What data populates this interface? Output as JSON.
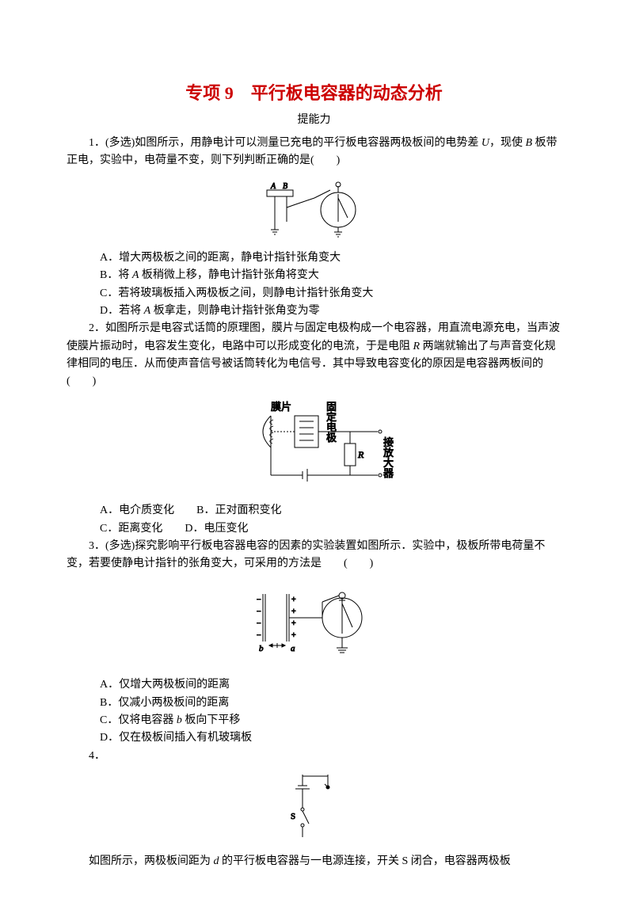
{
  "title": "专项 9　平行板电容器的动态分析",
  "subtitle": "提能力",
  "q1": {
    "stem": "1．(多选)如图所示，用静电计可以测量已充电的平行板电容器两极板间的电势差 <i>U</i>，现使 <i>B</i> 板带正电，实验中，电荷量不变，则下列判断正确的是(　　)",
    "optA": "A．增大两极板之间的距离，静电计指针张角变大",
    "optB": "B．将 <i>A</i> 板稍微上移，静电计指针张角将变大",
    "optC": "C．若将玻璃板插入两极板之间，则静电计指针张角变大",
    "optD": "D．若将 <i>A</i> 板拿走，则静电计指针张角变为零"
  },
  "q2": {
    "stem": "2．如图所示是电容式话筒的原理图，膜片与固定电极构成一个电容器，用直流电源充电，当声波使膜片振动时，电容发生变化，电路中可以形成变化的电流，于是电阻 <i>R</i> 两端就输出了与声音变化规律相同的电压．从而使声音信号被话筒转化为电信号．其中导致电容变化的原因是电容器两板间的(　　)",
    "labels": {
      "membrane": "膜片",
      "electrode": "固定电极",
      "amplifier": "接放大器",
      "R": "R"
    },
    "optA": "A．电介质变化",
    "optB": "B．正对面积变化",
    "optC": "C．距离变化",
    "optD": "D．电压变化"
  },
  "q3": {
    "stem": "3．(多选)探究影响平行板电容器电容的因素的实验装置如图所示．实验中，极板所带电荷量不变，若要使静电计指针的张角变大，可采用的方法是　　(　　)",
    "labels": {
      "a": "a",
      "b": "b"
    },
    "optA": "A．仅增大两极板间的距离",
    "optB": "B．仅减小两极板间的距离",
    "optC": "C．仅将电容器 <i>b</i> 板向下平移",
    "optD": "D．仅在极板间插入有机玻璃板"
  },
  "q4": {
    "stem": "4．",
    "labels": {
      "S": "S"
    },
    "continuation": "如图所示，两极板间距为 <i>d</i> 的平行板电容器与一电源连接，开关 S 闭合，电容器两极板"
  },
  "colors": {
    "title": "#cc0000",
    "text": "#000000",
    "background": "#ffffff",
    "stroke": "#000000"
  }
}
